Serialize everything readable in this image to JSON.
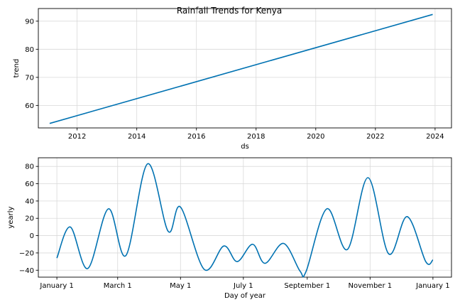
{
  "chart_data": [
    {
      "type": "line",
      "title": "Rainfall Trends for Kenya",
      "xlabel": "ds",
      "ylabel": "trend",
      "grid": true,
      "xlim": [
        2010.7,
        2024.55
      ],
      "ylim": [
        52.0,
        94.5
      ],
      "x_ticks": [
        {
          "value": 2012,
          "label": "2012"
        },
        {
          "value": 2014,
          "label": "2014"
        },
        {
          "value": 2016,
          "label": "2016"
        },
        {
          "value": 2018,
          "label": "2018"
        },
        {
          "value": 2020,
          "label": "2020"
        },
        {
          "value": 2022,
          "label": "2022"
        },
        {
          "value": 2024,
          "label": "2024"
        }
      ],
      "y_ticks": [
        {
          "value": 60,
          "label": "60"
        },
        {
          "value": 70,
          "label": "70"
        },
        {
          "value": 80,
          "label": "80"
        },
        {
          "value": 90,
          "label": "90"
        }
      ],
      "series": [
        {
          "color": "#0072b2",
          "x": [
            2011.08,
            2023.92
          ],
          "y": [
            53.6,
            92.4
          ]
        }
      ]
    },
    {
      "type": "line",
      "title": "",
      "xlabel": "Day of year",
      "ylabel": "yearly",
      "grid": true,
      "xlim": [
        -18,
        383
      ],
      "ylim": [
        -48,
        90
      ],
      "x_ticks": [
        {
          "value": 0,
          "label": "January 1"
        },
        {
          "value": 59,
          "label": "March 1"
        },
        {
          "value": 120,
          "label": "May 1"
        },
        {
          "value": 181,
          "label": "July 1"
        },
        {
          "value": 243,
          "label": "September 1"
        },
        {
          "value": 304,
          "label": "November 1"
        },
        {
          "value": 365,
          "label": "January 1"
        }
      ],
      "y_ticks": [
        {
          "value": -40,
          "label": "−40"
        },
        {
          "value": -20,
          "label": "−20"
        },
        {
          "value": 0,
          "label": "0"
        },
        {
          "value": 20,
          "label": "20"
        },
        {
          "value": 40,
          "label": "40"
        },
        {
          "value": 60,
          "label": "60"
        },
        {
          "value": 80,
          "label": "80"
        }
      ],
      "series": [
        {
          "color": "#0072b2",
          "x": [
            0,
            13,
            30,
            50,
            67,
            88,
            108,
            120,
            143,
            162,
            175,
            190,
            202,
            220,
            236,
            242,
            262,
            282,
            302,
            322,
            340,
            358,
            365
          ],
          "y": [
            -26,
            10,
            -38,
            31,
            -23,
            83,
            5,
            33,
            -39,
            -12,
            -30,
            -10,
            -32,
            -9,
            -41,
            -41,
            31,
            -16,
            67,
            -21,
            22,
            -30,
            -28
          ]
        }
      ]
    }
  ]
}
